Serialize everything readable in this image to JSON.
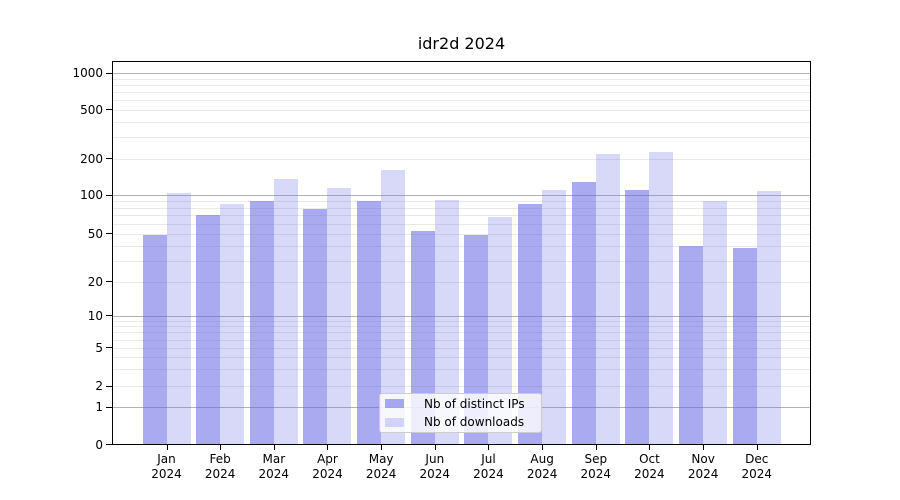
{
  "title": "idr2d 2024",
  "chart_data": {
    "type": "bar",
    "title": "idr2d 2024",
    "categories": [
      "Jan 2024",
      "Feb 2024",
      "Mar 2024",
      "Apr 2024",
      "May 2024",
      "Jun 2024",
      "Jul 2024",
      "Aug 2024",
      "Sep 2024",
      "Oct 2024",
      "Nov 2024",
      "Dec 2024"
    ],
    "series": [
      {
        "name": "Nb of distinct IPs",
        "color": "#6464e6",
        "opacity": 0.55,
        "values": [
          49,
          70,
          90,
          78,
          90,
          53,
          49,
          86,
          130,
          110,
          40,
          38
        ]
      },
      {
        "name": "Nb of downloads",
        "color": "#6464e6",
        "opacity": 0.25,
        "values": [
          105,
          86,
          136,
          116,
          162,
          93,
          68,
          112,
          220,
          228,
          91,
          109
        ]
      }
    ],
    "xlabel": "",
    "ylabel": "",
    "y_ticks": [
      0,
      1,
      2,
      5,
      10,
      20,
      50,
      100,
      200,
      500,
      1000
    ],
    "ylim": [
      0,
      1250
    ],
    "scale": "symlog",
    "grid": true,
    "legend_position": "lower center"
  },
  "colors": {
    "bar_base": "#6464e6",
    "major_grid": "#b3b3b3",
    "minor_grid": "#e9e9e9",
    "axis": "#000000",
    "legend_border": "#cccccc",
    "background": "#ffffff"
  }
}
